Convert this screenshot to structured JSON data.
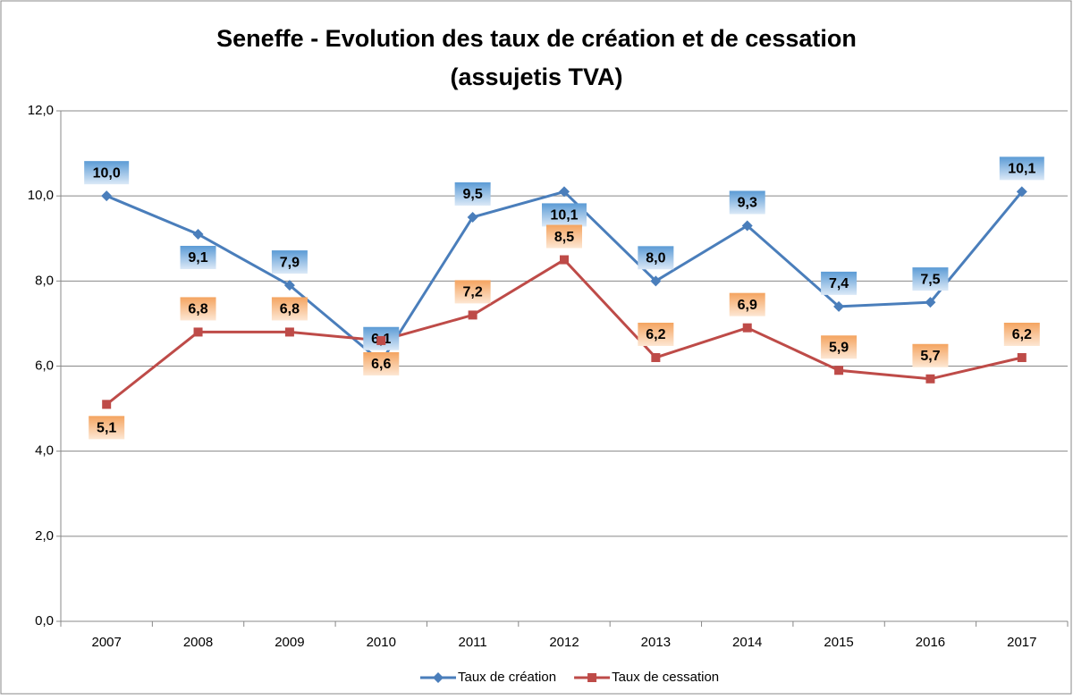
{
  "chart_data": {
    "type": "line",
    "title": [
      "Seneffe - Evolution des taux de création et de cessation",
      "(assujetis TVA)"
    ],
    "categories": [
      "2007",
      "2008",
      "2009",
      "2010",
      "2011",
      "2012",
      "2013",
      "2014",
      "2015",
      "2016",
      "2017"
    ],
    "series": [
      {
        "name": "Taux de création",
        "color": "#4a7ebb",
        "marker": "diamond",
        "values": [
          10.0,
          9.1,
          7.9,
          6.1,
          9.5,
          10.1,
          8.0,
          9.3,
          7.4,
          7.5,
          10.1
        ],
        "value_labels": [
          "10,0",
          "9,1",
          "7,9",
          "6,1",
          "9,5",
          "10,1",
          "8,0",
          "9,3",
          "7,4",
          "7,5",
          "10,1"
        ]
      },
      {
        "name": "Taux de cessation",
        "color": "#be4b48",
        "marker": "square",
        "values": [
          5.1,
          6.8,
          6.8,
          6.6,
          7.2,
          8.5,
          6.2,
          6.9,
          5.9,
          5.7,
          6.2
        ],
        "value_labels": [
          "5,1",
          "6,8",
          "6,8",
          "6,6",
          "7,2",
          "8,5",
          "6,2",
          "6,9",
          "5,9",
          "5,7",
          "6,2"
        ]
      }
    ],
    "ylim": [
      0,
      12
    ],
    "yticks": [
      {
        "value": 0,
        "label": "0,0"
      },
      {
        "value": 2,
        "label": "2,0"
      },
      {
        "value": 4,
        "label": "4,0"
      },
      {
        "value": 6,
        "label": "6,0"
      },
      {
        "value": 8,
        "label": "8,0"
      },
      {
        "value": 10,
        "label": "10,0"
      },
      {
        "value": 12,
        "label": "12,0"
      }
    ],
    "grid": true,
    "legend": "bottom"
  }
}
